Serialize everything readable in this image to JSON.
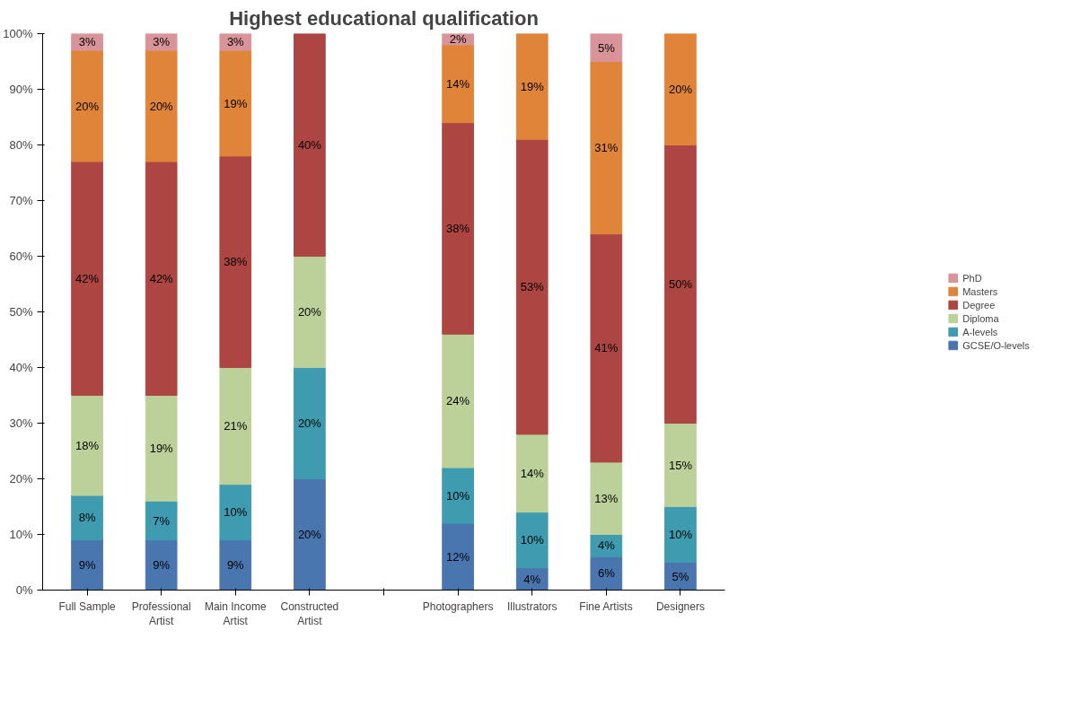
{
  "chart_data": {
    "type": "bar",
    "stacked": true,
    "title": "Highest educational qualification",
    "categories": [
      "Full Sample",
      "Professional Artist",
      "Main Income Artist",
      "Constructed Artist",
      null,
      "Photographers",
      "Illustrators",
      "Fine Artists",
      "Designers"
    ],
    "series": [
      {
        "name": "GCSE/O-levels",
        "color": "#4a76b0",
        "values": [
          9,
          9,
          9,
          20,
          null,
          12,
          4,
          6,
          5
        ],
        "value_labels": [
          "9%",
          "9%",
          "9%",
          "20%",
          null,
          "12%",
          "4%",
          "6%",
          "5%"
        ]
      },
      {
        "name": "A-levels",
        "color": "#3f9bb0",
        "values": [
          8,
          7,
          10,
          20,
          null,
          10,
          10,
          4,
          10
        ],
        "value_labels": [
          "8%",
          "7%",
          "10%",
          "20%",
          null,
          "10%",
          "10%",
          "4%",
          "10%"
        ]
      },
      {
        "name": "Diploma",
        "color": "#bcd19a",
        "values": [
          18,
          19,
          21,
          20,
          null,
          24,
          14,
          13,
          15
        ],
        "value_labels": [
          "18%",
          "19%",
          "21%",
          "20%",
          null,
          "24%",
          "14%",
          "13%",
          "15%"
        ]
      },
      {
        "name": "Degree",
        "color": "#ad4643",
        "values": [
          42,
          42,
          38,
          40,
          null,
          38,
          53,
          41,
          50
        ],
        "value_labels": [
          "42%",
          "42%",
          "38%",
          "40%",
          null,
          "38%",
          "53%",
          "41%",
          "50%"
        ]
      },
      {
        "name": "Masters",
        "color": "#e0843a",
        "values": [
          20,
          20,
          19,
          null,
          null,
          14,
          19,
          31,
          20
        ],
        "value_labels": [
          "20%",
          "20%",
          "19%",
          null,
          null,
          "14%",
          "19%",
          "31%",
          "20%"
        ]
      },
      {
        "name": "PhD",
        "color": "#d9949a",
        "values": [
          3,
          3,
          3,
          null,
          null,
          2,
          null,
          5,
          null
        ],
        "value_labels": [
          "3%",
          "3%",
          "3%",
          null,
          null,
          "2%",
          null,
          "5%",
          null
        ]
      }
    ],
    "ylim": [
      0,
      100
    ],
    "yticks": [
      {
        "value": 0,
        "label": "0%"
      },
      {
        "value": 10,
        "label": "10%"
      },
      {
        "value": 20,
        "label": "20%"
      },
      {
        "value": 30,
        "label": "30%"
      },
      {
        "value": 40,
        "label": "40%"
      },
      {
        "value": 50,
        "label": "50%"
      },
      {
        "value": 60,
        "label": "60%"
      },
      {
        "value": 70,
        "label": "70%"
      },
      {
        "value": 80,
        "label": "80%"
      },
      {
        "value": 90,
        "label": "90%"
      },
      {
        "value": 100,
        "label": "100%"
      }
    ],
    "grid": false,
    "legend": "right"
  }
}
